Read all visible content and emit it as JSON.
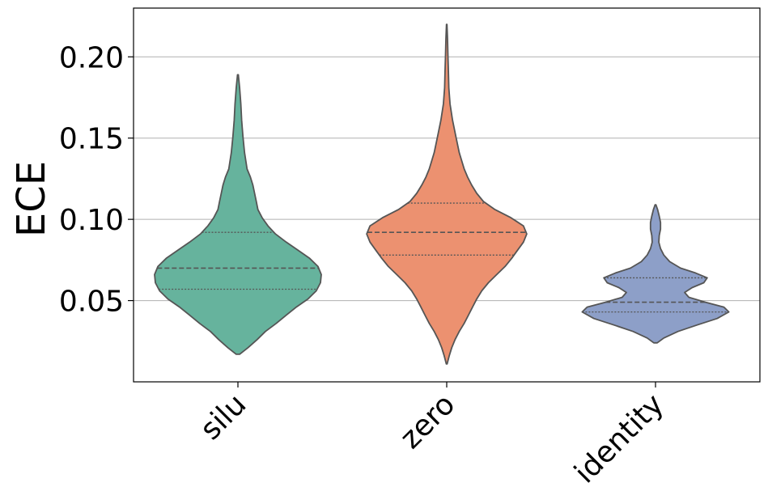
{
  "chart_data": {
    "type": "violin",
    "ylabel": "ECE",
    "xlabel": "",
    "title": "",
    "ylim": [
      0.0,
      0.23
    ],
    "yticks": [
      0.05,
      0.1,
      0.15,
      0.2
    ],
    "ytick_labels": [
      "0.05",
      "0.10",
      "0.15",
      "0.20"
    ],
    "grid": "horizontal",
    "inner": "quartiles",
    "categories": [
      "silu",
      "zero",
      "identity"
    ],
    "colors": [
      "#66b39d",
      "#ec9170",
      "#8d9fc8"
    ],
    "edge_color": "#555555",
    "violins": [
      {
        "category": "silu",
        "quartiles": [
          0.057,
          0.07,
          0.092
        ],
        "profile": [
          [
            0.017,
            0.02
          ],
          [
            0.021,
            0.12
          ],
          [
            0.026,
            0.23
          ],
          [
            0.031,
            0.33
          ],
          [
            0.036,
            0.46
          ],
          [
            0.041,
            0.58
          ],
          [
            0.046,
            0.7
          ],
          [
            0.051,
            0.84
          ],
          [
            0.056,
            0.94
          ],
          [
            0.061,
            0.99
          ],
          [
            0.066,
            1.0
          ],
          [
            0.071,
            0.96
          ],
          [
            0.076,
            0.86
          ],
          [
            0.081,
            0.72
          ],
          [
            0.086,
            0.58
          ],
          [
            0.091,
            0.45
          ],
          [
            0.096,
            0.36
          ],
          [
            0.101,
            0.29
          ],
          [
            0.106,
            0.24
          ],
          [
            0.111,
            0.22
          ],
          [
            0.116,
            0.2
          ],
          [
            0.121,
            0.18
          ],
          [
            0.126,
            0.15
          ],
          [
            0.131,
            0.11
          ],
          [
            0.141,
            0.08
          ],
          [
            0.151,
            0.06
          ],
          [
            0.161,
            0.045
          ],
          [
            0.171,
            0.035
          ],
          [
            0.181,
            0.02
          ],
          [
            0.189,
            0.005
          ]
        ]
      },
      {
        "category": "zero",
        "quartiles": [
          0.078,
          0.092,
          0.11
        ],
        "profile": [
          [
            0.011,
            0.005
          ],
          [
            0.016,
            0.03
          ],
          [
            0.021,
            0.06
          ],
          [
            0.026,
            0.1
          ],
          [
            0.031,
            0.15
          ],
          [
            0.036,
            0.21
          ],
          [
            0.041,
            0.26
          ],
          [
            0.046,
            0.31
          ],
          [
            0.051,
            0.36
          ],
          [
            0.056,
            0.42
          ],
          [
            0.061,
            0.5
          ],
          [
            0.066,
            0.6
          ],
          [
            0.071,
            0.7
          ],
          [
            0.076,
            0.78
          ],
          [
            0.081,
            0.85
          ],
          [
            0.086,
            0.92
          ],
          [
            0.091,
            0.96
          ],
          [
            0.096,
            0.92
          ],
          [
            0.101,
            0.77
          ],
          [
            0.106,
            0.58
          ],
          [
            0.111,
            0.44
          ],
          [
            0.116,
            0.36
          ],
          [
            0.121,
            0.3
          ],
          [
            0.126,
            0.25
          ],
          [
            0.131,
            0.21
          ],
          [
            0.141,
            0.15
          ],
          [
            0.151,
            0.11
          ],
          [
            0.161,
            0.07
          ],
          [
            0.171,
            0.04
          ],
          [
            0.181,
            0.025
          ],
          [
            0.191,
            0.02
          ],
          [
            0.201,
            0.015
          ],
          [
            0.211,
            0.01
          ],
          [
            0.22,
            0.003
          ]
        ]
      },
      {
        "category": "identity",
        "quartiles": [
          0.043,
          0.049,
          0.064
        ],
        "profile": [
          [
            0.024,
            0.02
          ],
          [
            0.027,
            0.1
          ],
          [
            0.031,
            0.27
          ],
          [
            0.035,
            0.5
          ],
          [
            0.039,
            0.74
          ],
          [
            0.043,
            0.88
          ],
          [
            0.046,
            0.82
          ],
          [
            0.049,
            0.6
          ],
          [
            0.052,
            0.4
          ],
          [
            0.055,
            0.35
          ],
          [
            0.058,
            0.44
          ],
          [
            0.061,
            0.58
          ],
          [
            0.064,
            0.62
          ],
          [
            0.067,
            0.48
          ],
          [
            0.07,
            0.3
          ],
          [
            0.074,
            0.17
          ],
          [
            0.078,
            0.1
          ],
          [
            0.082,
            0.06
          ],
          [
            0.086,
            0.04
          ],
          [
            0.09,
            0.045
          ],
          [
            0.094,
            0.06
          ],
          [
            0.098,
            0.06
          ],
          [
            0.102,
            0.045
          ],
          [
            0.106,
            0.025
          ],
          [
            0.109,
            0.005
          ]
        ]
      }
    ]
  }
}
